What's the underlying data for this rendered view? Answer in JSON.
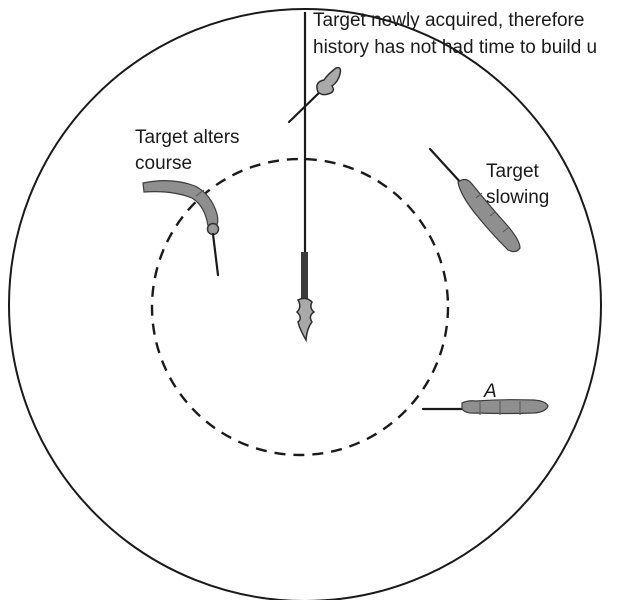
{
  "labels": {
    "newly_acquired_line1": "Target newly acquired, therefore",
    "newly_acquired_line2": "history has not had time to build u",
    "alters_line1": "Target alters",
    "alters_line2": "course",
    "slowing_line1": "Target",
    "slowing_line2": "slowing",
    "target_a": "A"
  },
  "colors": {
    "ink": "#1a1a1a",
    "trail": "#8f8f8f"
  }
}
